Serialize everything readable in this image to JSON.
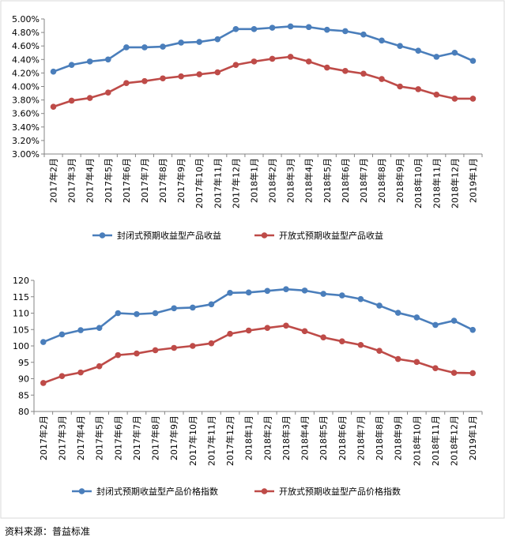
{
  "chart_data": [
    {
      "type": "line",
      "categories": [
        "2017年2月",
        "2017年3月",
        "2017年4月",
        "2017年5月",
        "2017年6月",
        "2017年7月",
        "2017年8月",
        "2017年9月",
        "2017年10月",
        "2017年11月",
        "2017年12月",
        "2018年1月",
        "2018年2月",
        "2018年3月",
        "2018年4月",
        "2018年5月",
        "2018年6月",
        "2018年7月",
        "2018年8月",
        "2018年9月",
        "2018年10月",
        "2018年11月",
        "2018年12月",
        "2019年1月"
      ],
      "ylim": [
        3.0,
        5.0
      ],
      "yticks": [
        "3.00%",
        "3.20%",
        "3.40%",
        "3.60%",
        "3.80%",
        "4.00%",
        "4.20%",
        "4.40%",
        "4.60%",
        "4.80%",
        "5.00%"
      ],
      "ytick_values": [
        3.0,
        3.2,
        3.4,
        3.6,
        3.8,
        4.0,
        4.2,
        4.4,
        4.6,
        4.8,
        5.0
      ],
      "series": [
        {
          "name": "封闭式预期收益型产品收益",
          "color": "#4a7ebb",
          "values": [
            4.22,
            4.32,
            4.37,
            4.4,
            4.58,
            4.58,
            4.59,
            4.65,
            4.66,
            4.7,
            4.85,
            4.85,
            4.87,
            4.89,
            4.88,
            4.84,
            4.82,
            4.77,
            4.68,
            4.6,
            4.53,
            4.44,
            4.5,
            4.38
          ]
        },
        {
          "name": "开放式预期收益型产品收益",
          "color": "#be4b48",
          "values": [
            3.7,
            3.79,
            3.83,
            3.91,
            4.05,
            4.08,
            4.12,
            4.15,
            4.18,
            4.21,
            4.32,
            4.37,
            4.41,
            4.44,
            4.37,
            4.28,
            4.23,
            4.19,
            4.11,
            4.0,
            3.96,
            3.88,
            3.82,
            3.82
          ]
        }
      ]
    },
    {
      "type": "line",
      "categories": [
        "2017年2月",
        "2017年3月",
        "2017年4月",
        "2017年5月",
        "2017年6月",
        "2017年7月",
        "2017年8月",
        "2017年9月",
        "2017年10月",
        "2017年11月",
        "2017年12月",
        "2018年1月",
        "2018年2月",
        "2018年3月",
        "2018年4月",
        "2018年5月",
        "2018年6月",
        "2018年7月",
        "2018年8月",
        "2018年9月",
        "2018年10月",
        "2018年11月",
        "2018年12月",
        "2019年1月"
      ],
      "ylim": [
        80,
        120
      ],
      "yticks": [
        "80",
        "85",
        "90",
        "95",
        "100",
        "105",
        "110",
        "115",
        "120"
      ],
      "ytick_values": [
        80,
        85,
        90,
        95,
        100,
        105,
        110,
        115,
        120
      ],
      "series": [
        {
          "name": "封闭式预期收益型产品价格指数",
          "color": "#4a7ebb",
          "values": [
            101.2,
            103.5,
            104.8,
            105.5,
            110.0,
            109.7,
            110.0,
            111.5,
            111.7,
            112.7,
            116.2,
            116.3,
            116.8,
            117.3,
            116.9,
            115.9,
            115.4,
            114.3,
            112.3,
            110.1,
            108.7,
            106.4,
            107.7,
            104.9
          ]
        },
        {
          "name": "开放式预期收益型产品价格指数",
          "color": "#be4b48",
          "values": [
            88.7,
            90.8,
            91.9,
            93.8,
            97.2,
            97.7,
            98.7,
            99.4,
            100.0,
            100.8,
            103.7,
            104.7,
            105.5,
            106.2,
            104.5,
            102.6,
            101.4,
            100.3,
            98.5,
            96.0,
            95.1,
            93.2,
            91.8,
            91.7
          ]
        }
      ]
    }
  ],
  "source": "资料来源：普益标准"
}
